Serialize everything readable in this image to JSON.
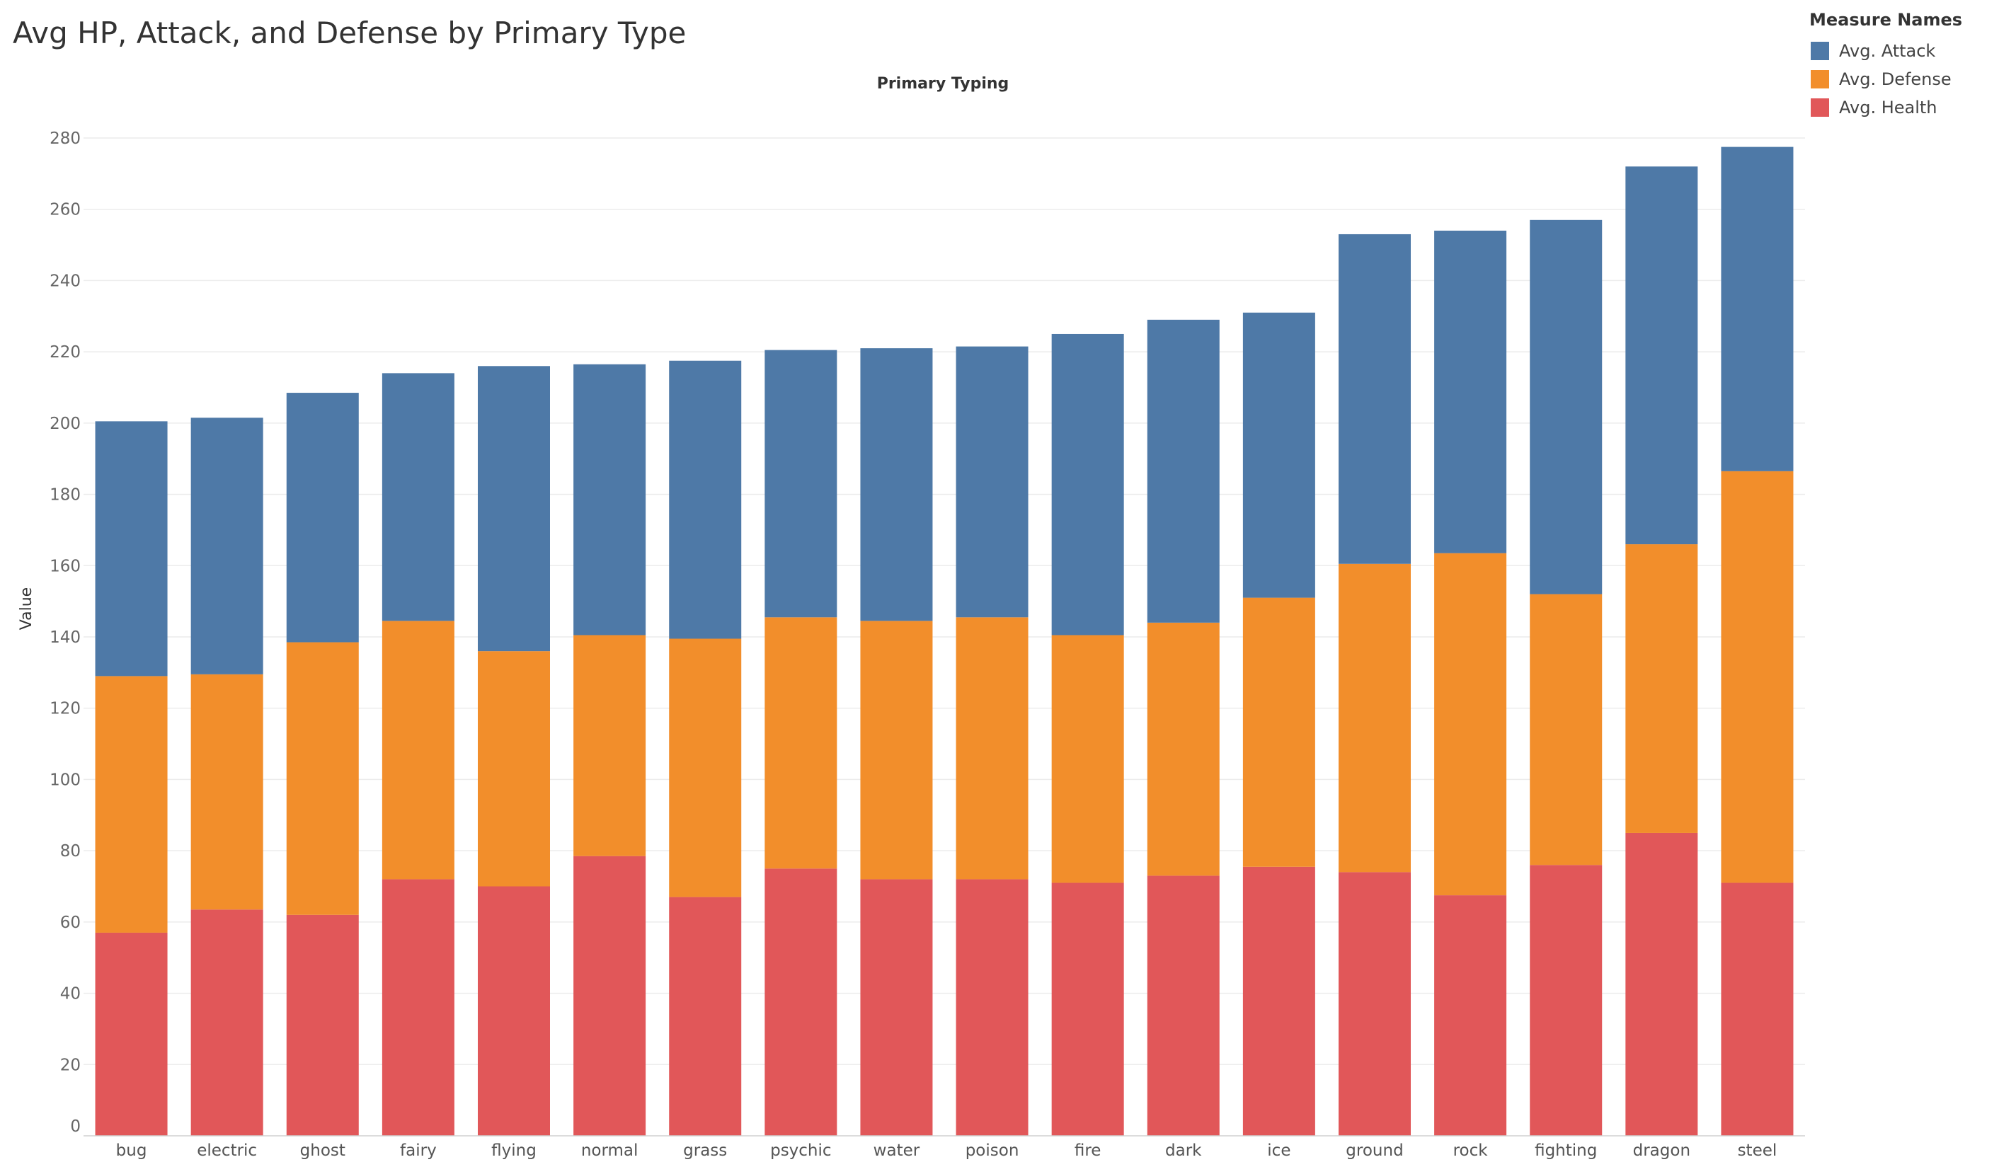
{
  "title": "Avg HP, Attack, and Defense by Primary Type",
  "legend": {
    "title": "Measure Names",
    "items": [
      {
        "label": "Avg. Attack",
        "color": "#4e79a7"
      },
      {
        "label": "Avg. Defense",
        "color": "#f28e2b"
      },
      {
        "label": "Avg. Health",
        "color": "#e15759"
      }
    ]
  },
  "chart_data": {
    "type": "bar",
    "stacked": true,
    "title": "Avg HP, Attack, and Defense by Primary Type",
    "column_header": "Primary Typing",
    "xlabel": "",
    "ylabel": "Value",
    "ylim": [
      0,
      280
    ],
    "yticks": [
      0,
      20,
      40,
      60,
      80,
      100,
      120,
      140,
      160,
      180,
      200,
      220,
      240,
      260,
      280
    ],
    "grid": "horizontal",
    "legend_position": "top-right",
    "categories": [
      "bug",
      "electric",
      "ghost",
      "fairy",
      "flying",
      "normal",
      "grass",
      "psychic",
      "water",
      "poison",
      "fire",
      "dark",
      "ice",
      "ground",
      "rock",
      "fighting",
      "dragon",
      "steel"
    ],
    "series": [
      {
        "name": "Avg. Health",
        "color": "#e15759",
        "values": [
          57,
          63.5,
          62,
          72,
          70,
          78.5,
          67,
          75,
          72,
          72,
          71,
          73,
          75.5,
          74,
          67.5,
          76,
          85,
          71
        ]
      },
      {
        "name": "Avg. Defense",
        "color": "#f28e2b",
        "values": [
          72,
          66,
          76.5,
          72.5,
          66,
          62,
          72.5,
          70.5,
          72.5,
          73.5,
          69.5,
          71,
          75.5,
          86.5,
          96,
          76,
          81,
          115.5
        ]
      },
      {
        "name": "Avg. Attack",
        "color": "#4e79a7",
        "values": [
          71.5,
          72,
          70,
          69.5,
          80,
          76,
          78,
          75,
          76.5,
          76,
          84.5,
          85,
          80,
          92.5,
          90.5,
          105,
          106,
          91
        ]
      }
    ]
  }
}
